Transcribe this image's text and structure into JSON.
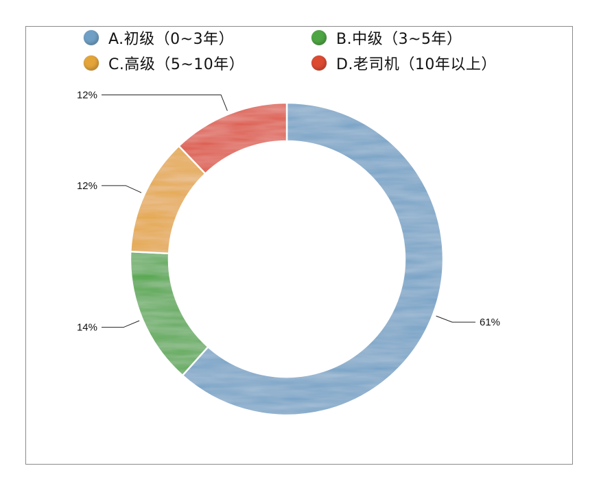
{
  "chart_data": {
    "type": "pie",
    "variant": "donut",
    "title": "",
    "legend_position": "top",
    "categories": [
      "A.初级（0~3年）",
      "B.中级（3~5年）",
      "C.高级（5~10年）",
      "D.老司机（10年以上）"
    ],
    "values": [
      61,
      14,
      12,
      12
    ],
    "data_labels": [
      "61%",
      "14%",
      "12%",
      "12%"
    ],
    "colors": [
      "#6f9fc4",
      "#4ea544",
      "#e3a43a",
      "#dc4a32"
    ]
  }
}
